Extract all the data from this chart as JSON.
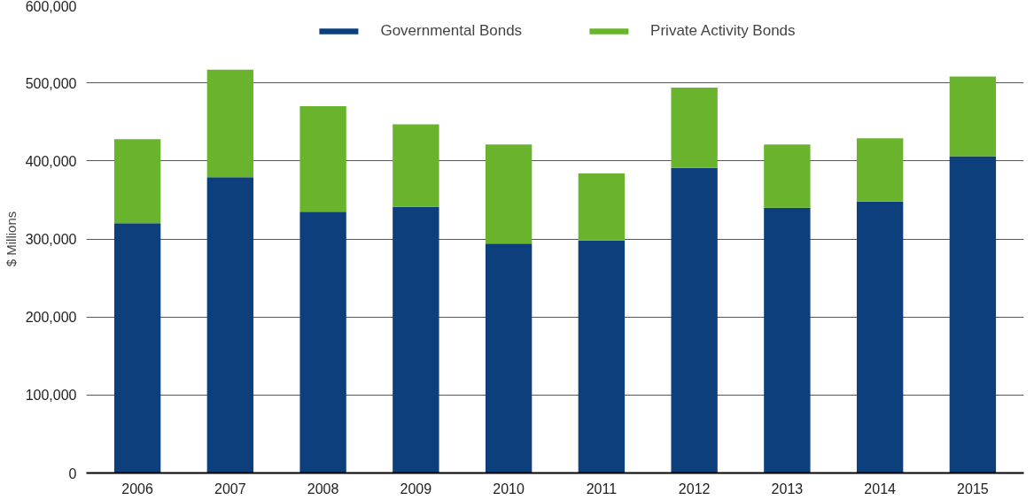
{
  "chart_data": {
    "type": "bar",
    "stacked": true,
    "ylabel": "$ Millions",
    "categories": [
      "2006",
      "2007",
      "2008",
      "2009",
      "2010",
      "2011",
      "2012",
      "2013",
      "2014",
      "2015"
    ],
    "series": [
      {
        "name": "Governmental Bonds",
        "color": "#0d3f7d",
        "values": [
          320000,
          379000,
          335000,
          341000,
          294000,
          298000,
          391000,
          340000,
          348000,
          406000
        ]
      },
      {
        "name": "Private Activity Bonds",
        "color": "#6ab42d",
        "values": [
          108000,
          138000,
          135000,
          106000,
          127000,
          86000,
          103000,
          81000,
          81000,
          102000
        ]
      }
    ],
    "ylim": [
      0,
      600000
    ],
    "yticks": [
      {
        "value": 0,
        "label": "0"
      },
      {
        "value": 100000,
        "label": "100,000"
      },
      {
        "value": 200000,
        "label": "200,000"
      },
      {
        "value": 300000,
        "label": "300,000"
      },
      {
        "value": 400000,
        "label": "400,000"
      },
      {
        "value": 500000,
        "label": "500,000"
      },
      {
        "value": 600000,
        "label": "600,000"
      }
    ],
    "grid": "y",
    "legend": "top"
  }
}
